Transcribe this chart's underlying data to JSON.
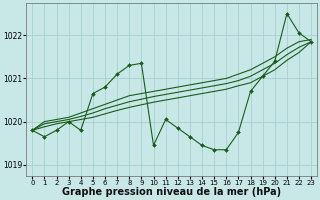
{
  "title": "Graphe pression niveau de la mer (hPa)",
  "background_color": "#c8e8e8",
  "grid_color": "#a8d0d0",
  "line_color": "#1a5c1a",
  "x_ticks": [
    0,
    1,
    2,
    3,
    4,
    5,
    6,
    7,
    8,
    9,
    10,
    11,
    12,
    13,
    14,
    15,
    16,
    17,
    18,
    19,
    20,
    21,
    22,
    23
  ],
  "ylim": [
    1018.75,
    1022.75
  ],
  "yticks": [
    1019,
    1020,
    1021,
    1022
  ],
  "main_series": [
    1019.8,
    1019.65,
    1019.8,
    1020.0,
    1019.8,
    1020.65,
    1020.8,
    1021.1,
    1021.3,
    1021.35,
    1019.45,
    1020.05,
    1019.85,
    1019.65,
    1019.45,
    1019.35,
    1019.35,
    1019.75,
    1020.7,
    1021.05,
    1021.4,
    1022.5,
    1022.05,
    1021.85
  ],
  "trend1": [
    1019.8,
    1020.0,
    1020.05,
    1020.1,
    1020.2,
    1020.3,
    1020.4,
    1020.5,
    1020.6,
    1020.65,
    1020.7,
    1020.75,
    1020.8,
    1020.85,
    1020.9,
    1020.95,
    1021.0,
    1021.1,
    1021.2,
    1021.35,
    1021.5,
    1021.7,
    1021.85,
    1021.9
  ],
  "trend2": [
    1019.8,
    1019.95,
    1020.0,
    1020.05,
    1020.12,
    1020.2,
    1020.3,
    1020.38,
    1020.46,
    1020.52,
    1020.58,
    1020.63,
    1020.68,
    1020.73,
    1020.78,
    1020.83,
    1020.88,
    1020.95,
    1021.05,
    1021.2,
    1021.35,
    1021.55,
    1021.72,
    1021.85
  ],
  "trend3": [
    1019.8,
    1019.88,
    1019.95,
    1020.0,
    1020.05,
    1020.1,
    1020.18,
    1020.26,
    1020.33,
    1020.39,
    1020.45,
    1020.5,
    1020.55,
    1020.6,
    1020.65,
    1020.7,
    1020.75,
    1020.83,
    1020.9,
    1021.05,
    1021.2,
    1021.42,
    1021.6,
    1021.85
  ],
  "marker": "D",
  "markersize": 2.0,
  "linewidth": 0.8,
  "title_fontsize": 7.0,
  "tick_fontsize": 5.0
}
